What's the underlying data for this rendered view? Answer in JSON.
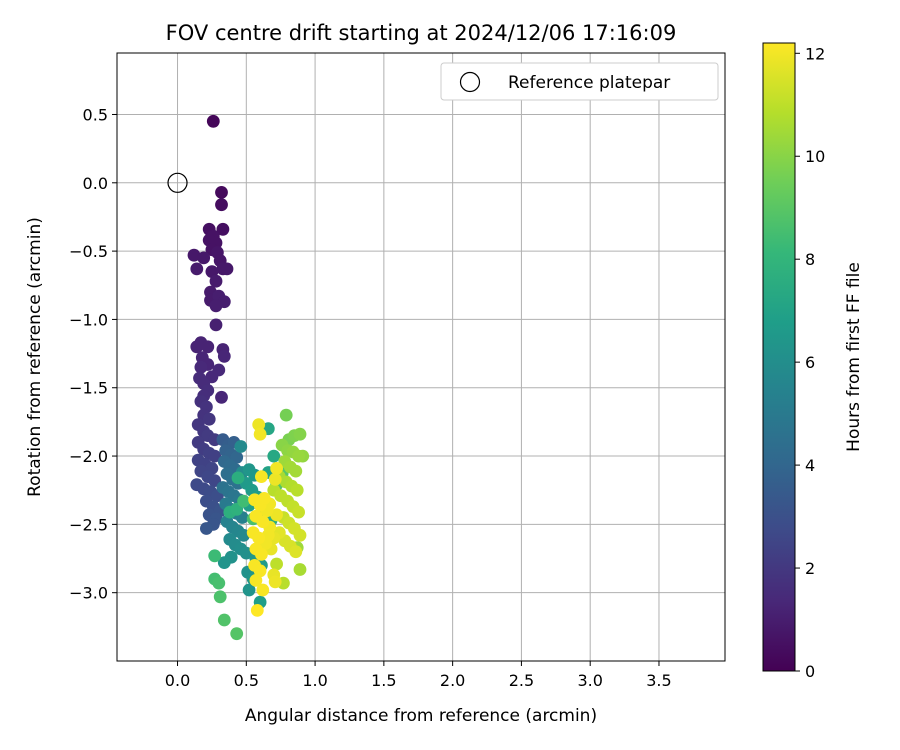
{
  "chart_data": {
    "type": "scatter",
    "title": "FOV centre drift starting at 2024/12/06 17:16:09",
    "xlabel": "Angular distance from reference (arcmin)",
    "ylabel": "Rotation from reference (arcmin)",
    "xlim": [
      -0.44,
      3.98
    ],
    "ylim": [
      -3.5,
      0.95
    ],
    "x_ticks": [
      0.0,
      0.5,
      1.0,
      1.5,
      2.0,
      2.5,
      3.0,
      3.5
    ],
    "x_tick_labels": [
      "0.0",
      "0.5",
      "1.0",
      "1.5",
      "2.0",
      "2.5",
      "3.0",
      "3.5"
    ],
    "y_ticks": [
      0.5,
      0.0,
      -0.5,
      -1.0,
      -1.5,
      -2.0,
      -2.5,
      -3.0
    ],
    "y_tick_labels": [
      "0.5",
      "0.0",
      "−0.5",
      "−1.0",
      "−1.5",
      "−2.0",
      "−2.5",
      "−3.0"
    ],
    "grid": true,
    "legend": {
      "placement": "upper right",
      "entries": [
        "Reference platepar"
      ]
    },
    "reference_point": {
      "x": 0.0,
      "y": 0.0,
      "label": "Reference platepar"
    },
    "colorbar": {
      "label": "Hours from first FF file",
      "min": 0,
      "max": 12.2,
      "ticks": [
        0,
        2,
        4,
        6,
        8,
        10,
        12
      ],
      "tick_labels": [
        "0",
        "2",
        "4",
        "6",
        "8",
        "10",
        "12"
      ],
      "colormap": "viridis"
    },
    "points": [
      [
        0.26,
        0.45,
        0.2
      ],
      [
        0.32,
        -0.07,
        0.3
      ],
      [
        0.32,
        -0.16,
        0.4
      ],
      [
        0.33,
        -0.34,
        0.5
      ],
      [
        0.23,
        -0.34,
        0.5
      ],
      [
        0.26,
        -0.39,
        0.6
      ],
      [
        0.23,
        -0.42,
        0.6
      ],
      [
        0.28,
        -0.44,
        0.6
      ],
      [
        0.29,
        -0.51,
        0.7
      ],
      [
        0.25,
        -0.49,
        0.6
      ],
      [
        0.12,
        -0.53,
        0.8
      ],
      [
        0.19,
        -0.55,
        0.8
      ],
      [
        0.31,
        -0.57,
        0.7
      ],
      [
        0.33,
        -0.63,
        0.8
      ],
      [
        0.36,
        -0.63,
        0.8
      ],
      [
        0.25,
        -0.65,
        0.8
      ],
      [
        0.14,
        -0.63,
        0.9
      ],
      [
        0.28,
        -0.72,
        0.9
      ],
      [
        0.24,
        -0.8,
        0.9
      ],
      [
        0.24,
        -0.86,
        0.9
      ],
      [
        0.3,
        -0.83,
        1.0
      ],
      [
        0.34,
        -0.87,
        1.0
      ],
      [
        0.28,
        -0.9,
        1.0
      ],
      [
        0.28,
        -1.04,
        1.1
      ],
      [
        0.14,
        -1.2,
        1.2
      ],
      [
        0.17,
        -1.17,
        1.2
      ],
      [
        0.22,
        -1.2,
        1.2
      ],
      [
        0.33,
        -1.22,
        1.2
      ],
      [
        0.34,
        -1.27,
        1.3
      ],
      [
        0.18,
        -1.28,
        1.3
      ],
      [
        0.22,
        -1.33,
        1.3
      ],
      [
        0.17,
        -1.35,
        1.4
      ],
      [
        0.3,
        -1.37,
        1.4
      ],
      [
        0.25,
        -1.42,
        1.4
      ],
      [
        0.16,
        -1.43,
        1.5
      ],
      [
        0.19,
        -1.47,
        1.5
      ],
      [
        0.22,
        -1.52,
        1.6
      ],
      [
        0.19,
        -1.56,
        1.6
      ],
      [
        0.17,
        -1.6,
        1.7
      ],
      [
        0.21,
        -1.64,
        1.8
      ],
      [
        0.19,
        -1.7,
        1.8
      ],
      [
        0.23,
        -1.73,
        1.9
      ],
      [
        0.15,
        -1.77,
        1.9
      ],
      [
        0.32,
        -1.57,
        1.3
      ],
      [
        0.19,
        -1.82,
        2.0
      ],
      [
        0.22,
        -1.85,
        2.1
      ],
      [
        0.27,
        -1.88,
        2.1
      ],
      [
        0.15,
        -1.9,
        2.1
      ],
      [
        0.19,
        -1.95,
        2.2
      ],
      [
        0.23,
        -1.98,
        2.3
      ],
      [
        0.27,
        -2.0,
        2.3
      ],
      [
        0.15,
        -2.03,
        2.4
      ],
      [
        0.2,
        -2.06,
        2.4
      ],
      [
        0.25,
        -2.09,
        2.5
      ],
      [
        0.17,
        -2.11,
        2.5
      ],
      [
        0.22,
        -2.15,
        2.6
      ],
      [
        0.27,
        -2.18,
        2.6
      ],
      [
        0.14,
        -2.21,
        2.7
      ],
      [
        0.19,
        -2.24,
        2.7
      ],
      [
        0.24,
        -2.26,
        2.8
      ],
      [
        0.29,
        -2.29,
        2.9
      ],
      [
        0.21,
        -2.33,
        2.9
      ],
      [
        0.26,
        -2.37,
        3.0
      ],
      [
        0.31,
        -2.4,
        3.1
      ],
      [
        0.23,
        -2.43,
        3.1
      ],
      [
        0.28,
        -2.46,
        3.2
      ],
      [
        0.21,
        -2.53,
        3.3
      ],
      [
        0.26,
        -2.5,
        3.2
      ],
      [
        0.33,
        -1.88,
        3.5
      ],
      [
        0.37,
        -1.92,
        3.6
      ],
      [
        0.41,
        -1.9,
        3.7
      ],
      [
        0.35,
        -1.96,
        3.8
      ],
      [
        0.39,
        -1.99,
        3.9
      ],
      [
        0.43,
        -2.01,
        4.0
      ],
      [
        0.34,
        -2.04,
        4.1
      ],
      [
        0.38,
        -2.07,
        4.2
      ],
      [
        0.42,
        -2.1,
        4.3
      ],
      [
        0.36,
        -2.13,
        4.4
      ],
      [
        0.4,
        -2.17,
        4.5
      ],
      [
        0.44,
        -2.2,
        4.6
      ],
      [
        0.33,
        -2.23,
        4.6
      ],
      [
        0.37,
        -2.26,
        4.7
      ],
      [
        0.41,
        -2.29,
        4.8
      ],
      [
        0.45,
        -2.32,
        4.9
      ],
      [
        0.35,
        -2.35,
        5.0
      ],
      [
        0.39,
        -2.39,
        5.1
      ],
      [
        0.43,
        -2.42,
        5.2
      ],
      [
        0.47,
        -2.45,
        5.3
      ],
      [
        0.36,
        -2.48,
        5.4
      ],
      [
        0.4,
        -2.52,
        5.5
      ],
      [
        0.44,
        -2.55,
        5.6
      ],
      [
        0.48,
        -2.58,
        5.7
      ],
      [
        0.38,
        -2.61,
        5.8
      ],
      [
        0.42,
        -2.65,
        5.9
      ],
      [
        0.46,
        -2.68,
        6.0
      ],
      [
        0.5,
        -2.71,
        6.1
      ],
      [
        0.39,
        -2.74,
        6.2
      ],
      [
        0.34,
        -2.78,
        6.3
      ],
      [
        0.52,
        -2.1,
        6.4
      ],
      [
        0.56,
        -2.14,
        6.5
      ],
      [
        0.5,
        -2.2,
        6.6
      ],
      [
        0.54,
        -2.25,
        6.7
      ],
      [
        0.58,
        -2.3,
        6.8
      ],
      [
        0.52,
        -2.36,
        6.9
      ],
      [
        0.47,
        -2.12,
        5.9
      ],
      [
        0.46,
        -1.93,
        5.8
      ],
      [
        0.51,
        -2.85,
        6.2
      ],
      [
        0.55,
        -2.9,
        6.4
      ],
      [
        0.6,
        -3.07,
        6.8
      ],
      [
        0.52,
        -2.98,
        6.3
      ],
      [
        0.57,
        -2.75,
        6.5
      ],
      [
        0.61,
        -2.8,
        6.6
      ],
      [
        0.66,
        -2.12,
        7.0
      ],
      [
        0.66,
        -1.8,
        7.2
      ],
      [
        0.7,
        -2.0,
        7.3
      ],
      [
        0.63,
        -2.43,
        7.4
      ],
      [
        0.68,
        -2.47,
        7.5
      ],
      [
        0.44,
        -2.16,
        7.6
      ],
      [
        0.38,
        -2.41,
        7.7
      ],
      [
        0.43,
        -2.39,
        7.8
      ],
      [
        0.27,
        -2.73,
        8.3
      ],
      [
        0.27,
        -2.9,
        8.5
      ],
      [
        0.3,
        -2.93,
        8.6
      ],
      [
        0.31,
        -3.03,
        8.7
      ],
      [
        0.34,
        -3.2,
        8.8
      ],
      [
        0.43,
        -3.3,
        8.9
      ],
      [
        0.48,
        -2.33,
        8.4
      ],
      [
        0.55,
        -2.46,
        8.6
      ],
      [
        0.72,
        -2.21,
        8.9
      ],
      [
        0.76,
        -2.13,
        9.0
      ],
      [
        0.79,
        -1.7,
        9.6
      ],
      [
        0.81,
        -1.88,
        9.7
      ],
      [
        0.85,
        -1.85,
        9.8
      ],
      [
        0.89,
        -1.84,
        9.9
      ],
      [
        0.76,
        -1.92,
        10.0
      ],
      [
        0.8,
        -1.96,
        10.1
      ],
      [
        0.84,
        -1.97,
        10.2
      ],
      [
        0.88,
        -2.0,
        10.3
      ],
      [
        0.78,
        -2.04,
        10.4
      ],
      [
        0.82,
        -2.08,
        10.5
      ],
      [
        0.86,
        -2.11,
        10.5
      ],
      [
        0.74,
        -2.15,
        10.6
      ],
      [
        0.79,
        -2.19,
        10.7
      ],
      [
        0.83,
        -2.22,
        10.8
      ],
      [
        0.87,
        -2.25,
        10.9
      ],
      [
        0.75,
        -2.29,
        11.0
      ],
      [
        0.8,
        -2.33,
        11.0
      ],
      [
        0.84,
        -2.37,
        11.1
      ],
      [
        0.88,
        -2.41,
        11.2
      ],
      [
        0.77,
        -2.45,
        11.2
      ],
      [
        0.81,
        -2.49,
        11.3
      ],
      [
        0.85,
        -2.53,
        11.4
      ],
      [
        0.89,
        -2.58,
        11.4
      ],
      [
        0.78,
        -2.62,
        11.5
      ],
      [
        0.82,
        -2.66,
        11.5
      ],
      [
        0.86,
        -2.7,
        11.6
      ],
      [
        0.89,
        -2.83,
        10.6
      ],
      [
        0.87,
        -2.67,
        10.4
      ],
      [
        0.72,
        -2.79,
        11.0
      ],
      [
        0.77,
        -2.93,
        10.9
      ],
      [
        0.91,
        -2.0,
        10.2
      ],
      [
        0.7,
        -2.25,
        10.9
      ],
      [
        0.59,
        -1.77,
        11.9
      ],
      [
        0.6,
        -1.84,
        12.0
      ],
      [
        0.72,
        -2.09,
        12.0
      ],
      [
        0.71,
        -2.17,
        11.9
      ],
      [
        0.7,
        -2.87,
        11.8
      ],
      [
        0.71,
        -2.92,
        11.9
      ],
      [
        0.61,
        -2.15,
        12.1
      ],
      [
        0.56,
        -2.32,
        12.1
      ],
      [
        0.6,
        -2.36,
        12.1
      ],
      [
        0.65,
        -2.4,
        12.0
      ],
      [
        0.57,
        -2.44,
        12.1
      ],
      [
        0.62,
        -2.48,
        12.1
      ],
      [
        0.67,
        -2.52,
        12.0
      ],
      [
        0.55,
        -2.56,
        12.1
      ],
      [
        0.59,
        -2.6,
        12.1
      ],
      [
        0.64,
        -2.64,
        12.0
      ],
      [
        0.57,
        -2.68,
        12.1
      ],
      [
        0.61,
        -2.72,
        12.1
      ],
      [
        0.66,
        -2.58,
        12.0
      ],
      [
        0.56,
        -2.8,
        12.1
      ],
      [
        0.6,
        -2.84,
        12.1
      ],
      [
        0.57,
        -2.91,
        12.1
      ],
      [
        0.62,
        -2.98,
        12.1
      ],
      [
        0.58,
        -3.13,
        12.2
      ],
      [
        0.63,
        -2.31,
        12.1
      ],
      [
        0.67,
        -2.35,
        12.0
      ],
      [
        0.72,
        -2.43,
        11.9
      ],
      [
        0.7,
        -2.6,
        11.8
      ],
      [
        0.74,
        -2.56,
        11.7
      ],
      [
        0.68,
        -2.68,
        11.8
      ]
    ]
  }
}
